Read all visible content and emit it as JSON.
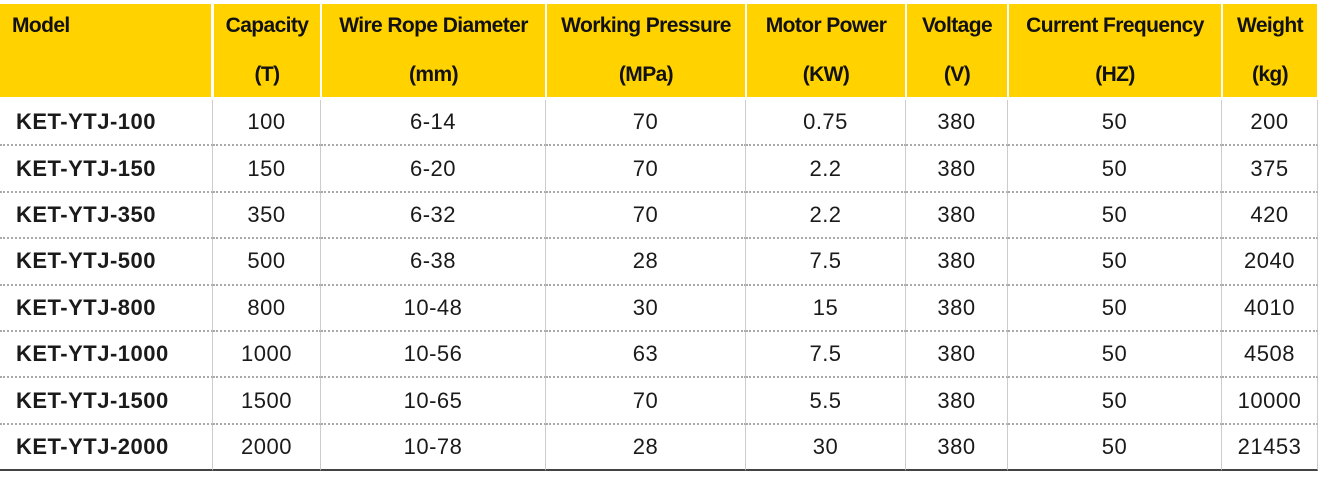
{
  "table": {
    "headers": [
      {
        "title": "Model"
      },
      {
        "title": "Capacity",
        "unit": "(T)"
      },
      {
        "title": "Wire Rope Diameter",
        "unit": "(mm)"
      },
      {
        "title": "Working Pressure",
        "unit": "(MPa)"
      },
      {
        "title": "Motor Power",
        "unit": "(KW)"
      },
      {
        "title": "Voltage",
        "unit": "(V)"
      },
      {
        "title": "Current Frequency",
        "unit": "(HZ)"
      },
      {
        "title": "Weight",
        "unit": "(kg)"
      }
    ],
    "rows": [
      [
        "KET-YTJ-100",
        "100",
        "6-14",
        "70",
        "0.75",
        "380",
        "50",
        "200"
      ],
      [
        "KET-YTJ-150",
        "150",
        "6-20",
        "70",
        "2.2",
        "380",
        "50",
        "375"
      ],
      [
        "KET-YTJ-350",
        "350",
        "6-32",
        "70",
        "2.2",
        "380",
        "50",
        "420"
      ],
      [
        "KET-YTJ-500",
        "500",
        "6-38",
        "28",
        "7.5",
        "380",
        "50",
        "2040"
      ],
      [
        "KET-YTJ-800",
        "800",
        "10-48",
        "30",
        "15",
        "380",
        "50",
        "4010"
      ],
      [
        "KET-YTJ-1000",
        "1000",
        "10-56",
        "63",
        "7.5",
        "380",
        "50",
        "4508"
      ],
      [
        "KET-YTJ-1500",
        "1500",
        "10-65",
        "70",
        "5.5",
        "380",
        "50",
        "10000"
      ],
      [
        "KET-YTJ-2000",
        "2000",
        "10-78",
        "28",
        "30",
        "380",
        "50",
        "21453"
      ]
    ]
  }
}
